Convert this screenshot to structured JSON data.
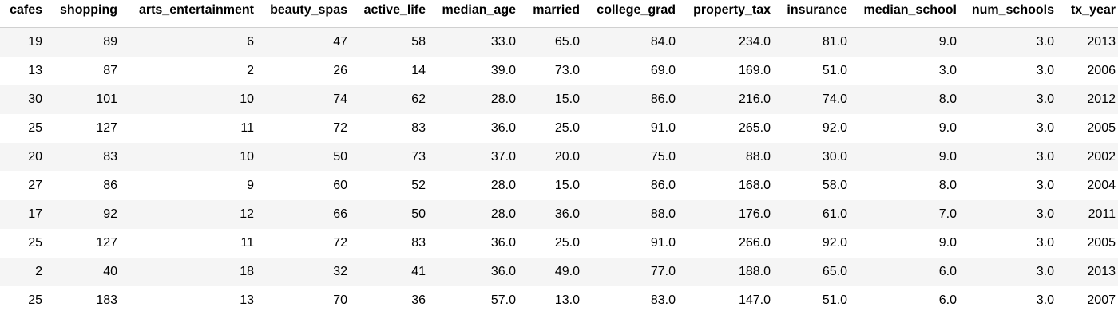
{
  "table": {
    "columns": [
      "cafes",
      "shopping",
      "arts_entertainment",
      "beauty_spas",
      "active_life",
      "median_age",
      "married",
      "college_grad",
      "property_tax",
      "insurance",
      "median_school",
      "num_schools",
      "tx_year"
    ],
    "rows": [
      [
        "19",
        "89",
        "6",
        "47",
        "58",
        "33.0",
        "65.0",
        "84.0",
        "234.0",
        "81.0",
        "9.0",
        "3.0",
        "2013"
      ],
      [
        "13",
        "87",
        "2",
        "26",
        "14",
        "39.0",
        "73.0",
        "69.0",
        "169.0",
        "51.0",
        "3.0",
        "3.0",
        "2006"
      ],
      [
        "30",
        "101",
        "10",
        "74",
        "62",
        "28.0",
        "15.0",
        "86.0",
        "216.0",
        "74.0",
        "8.0",
        "3.0",
        "2012"
      ],
      [
        "25",
        "127",
        "11",
        "72",
        "83",
        "36.0",
        "25.0",
        "91.0",
        "265.0",
        "92.0",
        "9.0",
        "3.0",
        "2005"
      ],
      [
        "20",
        "83",
        "10",
        "50",
        "73",
        "37.0",
        "20.0",
        "75.0",
        "88.0",
        "30.0",
        "9.0",
        "3.0",
        "2002"
      ],
      [
        "27",
        "86",
        "9",
        "60",
        "52",
        "28.0",
        "15.0",
        "86.0",
        "168.0",
        "58.0",
        "8.0",
        "3.0",
        "2004"
      ],
      [
        "17",
        "92",
        "12",
        "66",
        "50",
        "28.0",
        "36.0",
        "88.0",
        "176.0",
        "61.0",
        "7.0",
        "3.0",
        "2011"
      ],
      [
        "25",
        "127",
        "11",
        "72",
        "83",
        "36.0",
        "25.0",
        "91.0",
        "266.0",
        "92.0",
        "9.0",
        "3.0",
        "2005"
      ],
      [
        "2",
        "40",
        "18",
        "32",
        "41",
        "36.0",
        "49.0",
        "77.0",
        "188.0",
        "65.0",
        "6.0",
        "3.0",
        "2013"
      ],
      [
        "25",
        "183",
        "13",
        "70",
        "36",
        "57.0",
        "13.0",
        "83.0",
        "147.0",
        "51.0",
        "6.0",
        "3.0",
        "2007"
      ]
    ]
  }
}
